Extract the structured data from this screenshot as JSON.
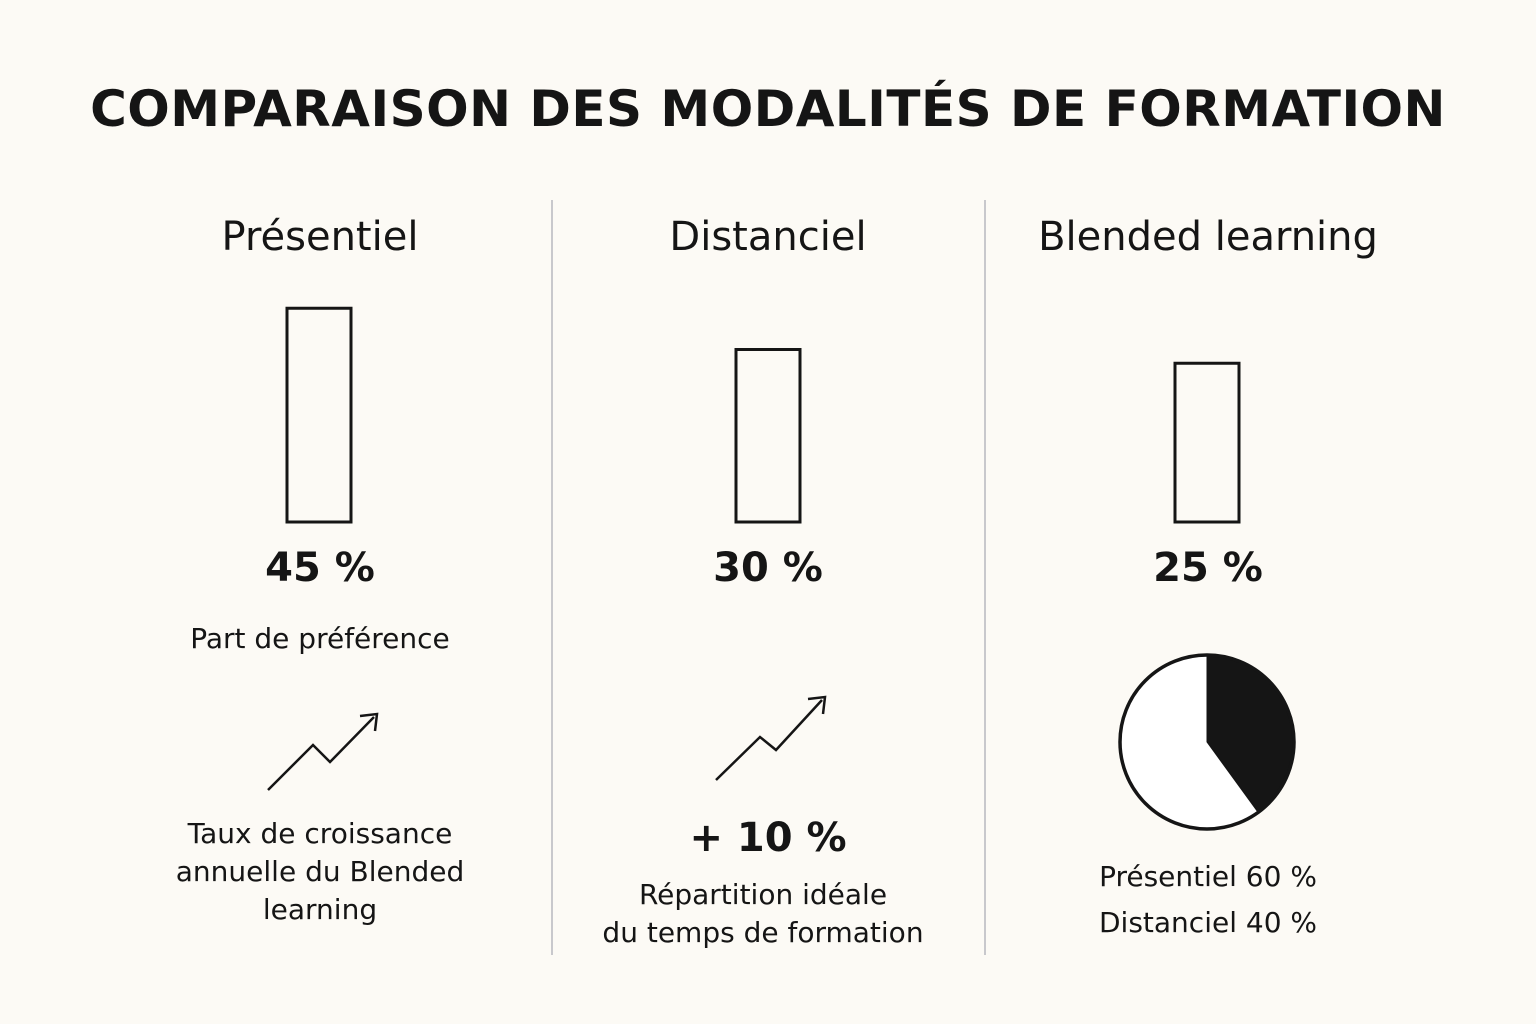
{
  "title": "COMPARAISON DES MODALITÉS DE FORMATION",
  "colors": {
    "background": "#fcfaf5",
    "ink": "#151515",
    "separator": "#c8c8cc"
  },
  "columns": [
    {
      "heading": "Présentiel",
      "value_label": "45 %",
      "caption": "Part de préférence",
      "icon": "trend-up-arrow-icon",
      "footer_lines": [
        "Taux de croissance",
        "annuelle du Blended",
        "learning"
      ]
    },
    {
      "heading": "Distanciel",
      "value_label": "30 %",
      "icon": "trend-up-arrow-icon",
      "growth_label": "+ 10 %",
      "footer_lines": [
        "Répartition idéale",
        "du temps de formation"
      ]
    },
    {
      "heading": "Blended learning",
      "value_label": "25 %",
      "icon": "pie-chart",
      "footer_lines": [
        "Présentiel 60 %",
        "Distanciel 40 %"
      ]
    }
  ],
  "chart_data": [
    {
      "type": "bar",
      "categories": [
        "Présentiel",
        "Distanciel",
        "Blended learning"
      ],
      "values": [
        45,
        30,
        25
      ],
      "unit": "%",
      "style": "outlined"
    },
    {
      "type": "pie",
      "labels": [
        "Présentiel",
        "Distanciel"
      ],
      "values": [
        60,
        40
      ],
      "unit": "%",
      "colors": [
        "#ffffff",
        "#151515"
      ]
    }
  ]
}
